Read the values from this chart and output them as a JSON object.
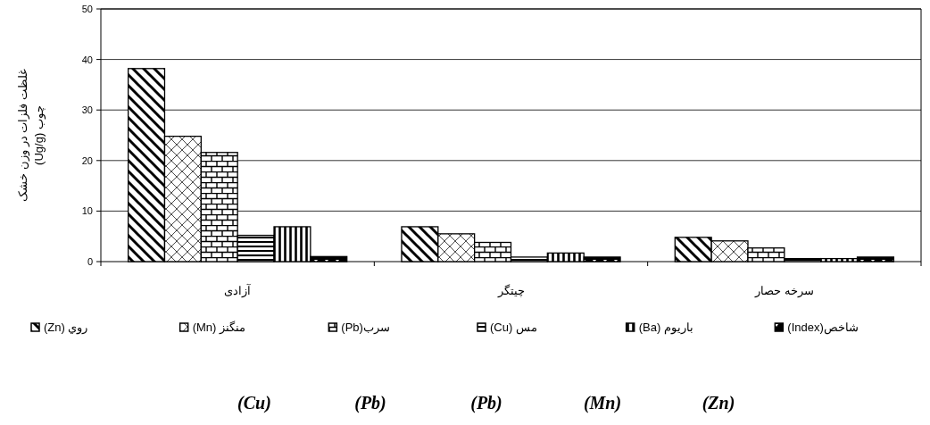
{
  "chart_data": {
    "type": "bar",
    "ylabel": "غلظت فلزات در وزن خشک\nچوب (Ug/g)",
    "categories": [
      "آزادی",
      "چیتگر",
      "سرخه حصار"
    ],
    "series": [
      {
        "name": "روي (Zn)",
        "color": "#000000",
        "values": [
          38.2,
          6.9,
          4.8
        ]
      },
      {
        "name": "منگنز (Mn)",
        "color": "#000000",
        "values": [
          24.8,
          5.5,
          4.1
        ]
      },
      {
        "name": "سرب(Pb)",
        "color": "#000000",
        "values": [
          21.6,
          3.8,
          2.7
        ]
      },
      {
        "name": "مس (Cu)",
        "color": "#000000",
        "values": [
          5.2,
          0.9,
          0.6
        ]
      },
      {
        "name": "باریوم (Ba)",
        "color": "#000000",
        "values": [
          6.9,
          1.7,
          0.6
        ]
      },
      {
        "name": "شاخص(Index)",
        "color": "#000000",
        "values": [
          1.0,
          0.9,
          0.9
        ]
      }
    ],
    "ylim": [
      0,
      50
    ],
    "yticks": [
      0,
      10,
      20,
      30,
      40,
      50
    ],
    "grid": "y",
    "legend": "bottom",
    "annotations": [
      "(Cu)",
      "(Pb)",
      "(Pb)",
      "(Mn)",
      "(Zn)"
    ]
  }
}
